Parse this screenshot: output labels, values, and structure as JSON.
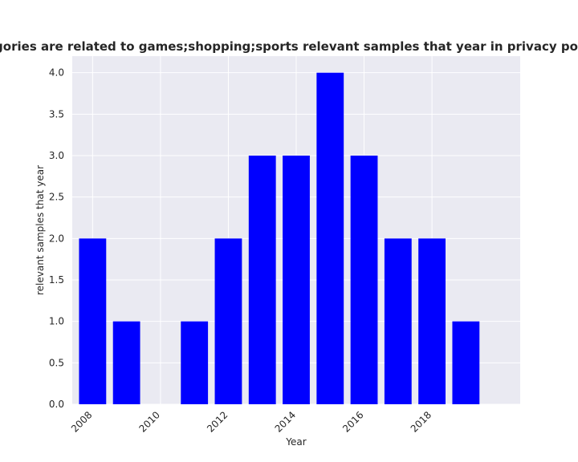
{
  "chart_data": {
    "type": "bar",
    "title": "categories are related to games;shopping;sports relevant samples that year in privacy policies",
    "xlabel": "Year",
    "ylabel": "relevant samples that year",
    "x": [
      2008,
      2009,
      2010,
      2011,
      2012,
      2013,
      2014,
      2015,
      2016,
      2017,
      2018,
      2019
    ],
    "values": [
      2,
      1,
      0,
      1,
      2,
      3,
      3,
      4,
      3,
      2,
      2,
      1
    ],
    "xticks": [
      "2008",
      "2010",
      "2012",
      "2014",
      "2016",
      "2018"
    ],
    "yticks": [
      "0.0",
      "0.5",
      "1.0",
      "1.5",
      "2.0",
      "2.5",
      "3.0",
      "3.5",
      "4.0"
    ],
    "xlim": [
      2007.4,
      2020.6
    ],
    "ylim": [
      0,
      4.2
    ],
    "grid": true,
    "colors": {
      "bar": "#0000ff",
      "background": "#eaeaf2",
      "grid": "#ffffff"
    }
  }
}
